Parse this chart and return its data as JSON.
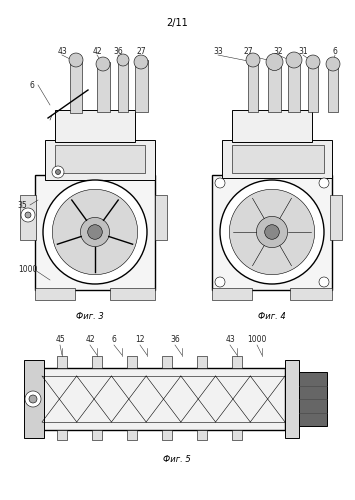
{
  "page_label": "2/11",
  "fig3_caption": "Фиг. 3",
  "fig4_caption": "Фиг. 4",
  "fig5_caption": "Фиг. 5",
  "bg_color": "#ffffff",
  "line_color": "#000000",
  "gray_light": "#e8e8e8",
  "gray_mid": "#cccccc",
  "gray_dark": "#888888",
  "gray_outline": "#555555",
  "lw_main": 0.7,
  "lw_thin": 0.4,
  "lw_thick": 1.0
}
